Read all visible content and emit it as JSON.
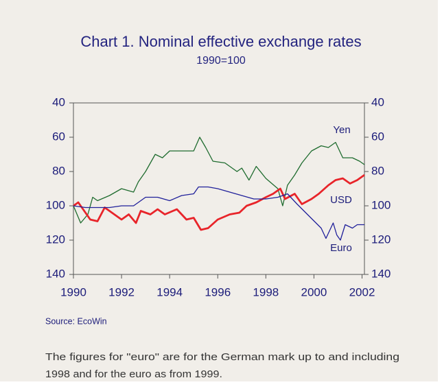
{
  "chart_data": {
    "type": "line",
    "title": "Chart 1. Nominal effective exchange rates",
    "subtitle": "1990=100",
    "xlim": [
      1990,
      2002.1
    ],
    "xticks": [
      1990,
      1992,
      1994,
      1996,
      1998,
      2000,
      2002
    ],
    "ylim": [
      40,
      140
    ],
    "yticks": [
      40,
      60,
      80,
      100,
      120,
      140
    ],
    "y2lim": [
      40,
      140
    ],
    "y2ticks": [
      40,
      60,
      80,
      100,
      120,
      140
    ],
    "y_inverted": true,
    "grid": false,
    "series": [
      {
        "name": "Yen",
        "color": "#1e6b2e",
        "x": [
          1990,
          1990.3,
          1990.6,
          1990.8,
          1991,
          1991.5,
          1992,
          1992.5,
          1992.7,
          1993,
          1993.4,
          1993.7,
          1994,
          1994.5,
          1995,
          1995.25,
          1995.5,
          1995.8,
          1996.3,
          1996.8,
          1997,
          1997.3,
          1997.6,
          1998,
          1998.5,
          1998.7,
          1998.9,
          1999.2,
          1999.5,
          1999.9,
          2000.3,
          2000.6,
          2000.9,
          2001.2,
          2001.6,
          2001.9,
          2002.1
        ],
        "values": [
          100,
          110,
          105,
          95,
          97,
          94,
          90,
          92,
          86,
          80,
          70,
          72,
          68,
          68,
          68,
          60,
          66,
          74,
          75,
          80,
          78,
          85,
          77,
          84,
          90,
          100,
          88,
          82,
          75,
          68,
          65,
          66,
          63,
          72,
          72,
          74,
          76
        ]
      },
      {
        "name": "USD",
        "color": "#e8242a",
        "x": [
          1990,
          1990.2,
          1990.5,
          1990.7,
          1991,
          1991.3,
          1991.6,
          1992,
          1992.3,
          1992.6,
          1992.8,
          1993.2,
          1993.5,
          1993.8,
          1994.3,
          1994.7,
          1995,
          1995.3,
          1995.6,
          1996,
          1996.5,
          1996.9,
          1997.2,
          1997.6,
          1998,
          1998.3,
          1998.6,
          1998.8,
          1999.2,
          1999.5,
          1999.9,
          2000.2,
          2000.6,
          2000.9,
          2001.2,
          2001.5,
          2001.8,
          2002.1
        ],
        "values": [
          100,
          98,
          104,
          108,
          109,
          101,
          104,
          108,
          105,
          110,
          103,
          105,
          102,
          105,
          102,
          108,
          107,
          114,
          113,
          108,
          105,
          104,
          100,
          98,
          95,
          93,
          90,
          96,
          93,
          99,
          96,
          93,
          88,
          85,
          84,
          87,
          85,
          82
        ]
      },
      {
        "name": "Euro",
        "color": "#1f1f9a",
        "x": [
          1990,
          1990.5,
          1991,
          1991.5,
          1992,
          1992.5,
          1993,
          1993.5,
          1994,
          1994.5,
          1995,
          1995.2,
          1995.6,
          1996,
          1996.5,
          1997,
          1997.5,
          1998,
          1998.5,
          1998.9,
          1999.3,
          1999.8,
          2000.3,
          2000.5,
          2000.8,
          2000.95,
          2001.1,
          2001.3,
          2001.6,
          2001.8,
          2002.1
        ],
        "values": [
          100,
          101,
          101,
          101,
          100,
          100,
          95,
          95,
          97,
          94,
          93,
          89,
          89,
          90,
          92,
          94,
          96,
          96,
          95,
          93,
          99,
          106,
          113,
          119,
          110,
          117,
          120,
          111,
          113,
          111,
          111
        ]
      }
    ],
    "source": "Source: EcoWin",
    "note": [
      "The figures for \"euro\" are for the German mark up to and including",
      "1998 and for the euro as from 1999."
    ]
  }
}
